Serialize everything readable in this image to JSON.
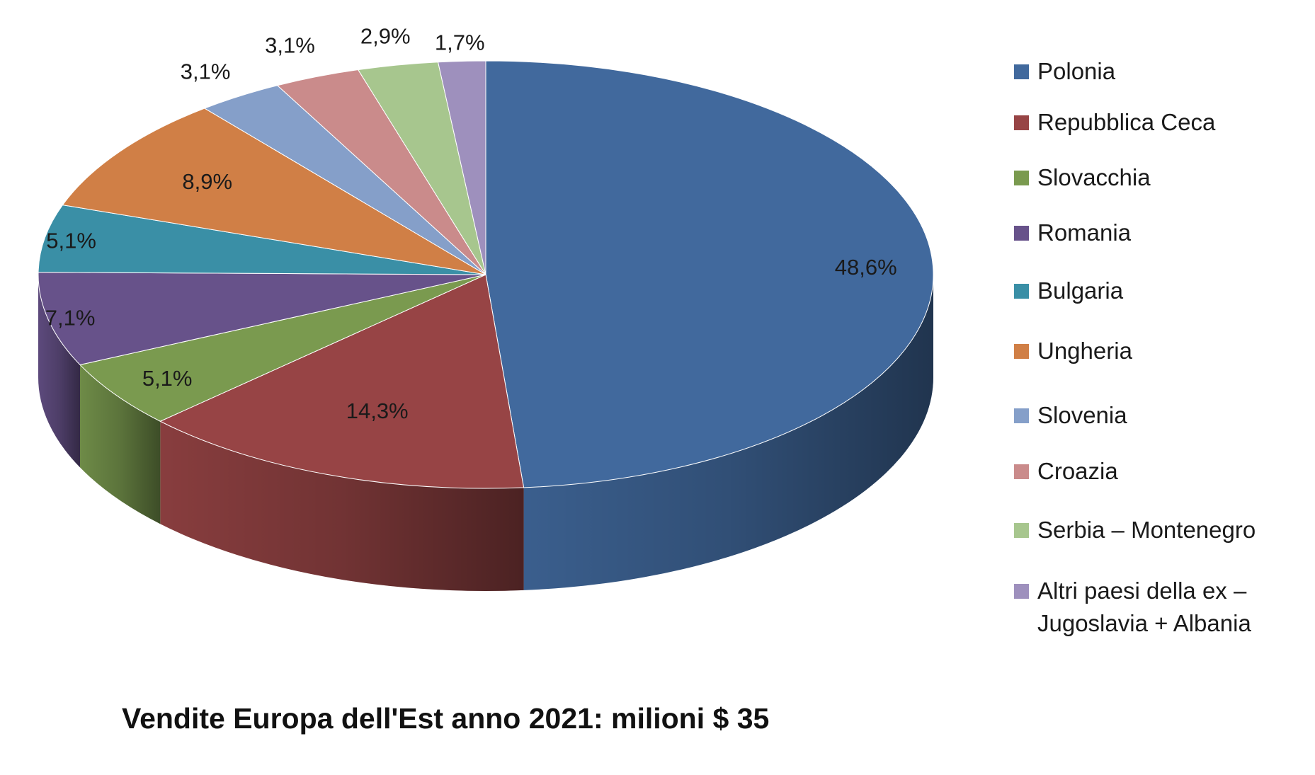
{
  "chart_data": {
    "type": "pie",
    "style": "3d",
    "title": "Vendite Europa dell'Est anno 2021: milioni $ 35",
    "legend_position": "right",
    "slices": [
      {
        "name": "Polonia",
        "value": 48.6,
        "label": "48,6%",
        "color": "#41699D"
      },
      {
        "name": "Repubblica Ceca",
        "value": 14.3,
        "label": "14,3%",
        "color": "#974445"
      },
      {
        "name": "Slovacchia",
        "value": 5.1,
        "label": "5,1%",
        "color": "#7A9A4F"
      },
      {
        "name": "Romania",
        "value": 7.1,
        "label": "7,1%",
        "color": "#67528A"
      },
      {
        "name": "Bulgaria",
        "value": 5.1,
        "label": "5,1%",
        "color": "#3A8FA6"
      },
      {
        "name": "Ungheria",
        "value": 8.9,
        "label": "8,9%",
        "color": "#D07F46"
      },
      {
        "name": "Slovenia",
        "value": 3.1,
        "label": "3,1%",
        "color": "#859FC9"
      },
      {
        "name": "Croazia",
        "value": 3.1,
        "label": "3,1%",
        "color": "#CA8B8B"
      },
      {
        "name": "Serbia – Montenegro",
        "value": 2.9,
        "label": "2,9%",
        "color": "#A7C68E"
      },
      {
        "name": "Altri paesi della ex –\nJugoslavia + Albania",
        "value": 1.7,
        "label": "1,7%",
        "color": "#9E90BD"
      }
    ]
  }
}
